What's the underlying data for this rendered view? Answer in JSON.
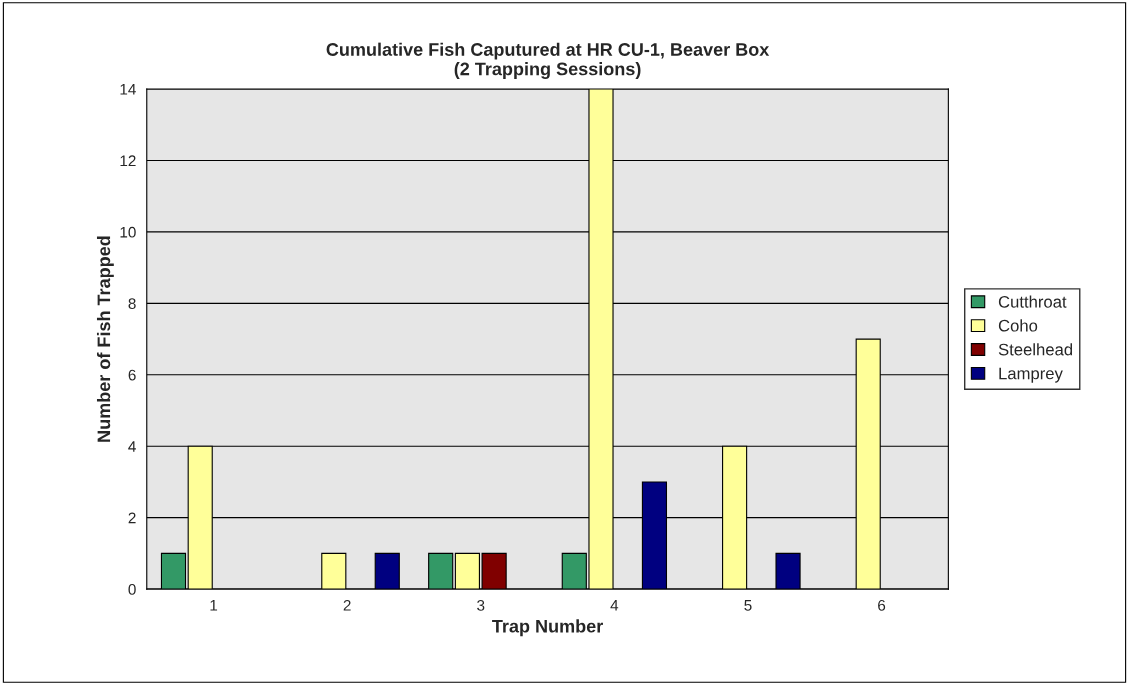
{
  "chart_data": {
    "type": "bar",
    "title": "Cumulative Fish Caputured at HR CU-1, Beaver Box\n(2 Trapping Sessions)",
    "xlabel": "Trap Number",
    "ylabel": "Number of Fish Trapped",
    "categories": [
      "1",
      "2",
      "3",
      "4",
      "5",
      "6"
    ],
    "series": [
      {
        "name": "Cutthroat",
        "color": "#339966",
        "values": [
          1,
          null,
          1,
          1,
          null,
          null
        ]
      },
      {
        "name": "Coho",
        "color": "#ffff99",
        "values": [
          4,
          1,
          1,
          14,
          4,
          7
        ]
      },
      {
        "name": "Steelhead",
        "color": "#800000",
        "values": [
          null,
          null,
          1,
          null,
          null,
          null
        ]
      },
      {
        "name": "Lamprey",
        "color": "#000080",
        "values": [
          null,
          1,
          null,
          3,
          1,
          null
        ]
      }
    ],
    "ylim": [
      0,
      14
    ],
    "yticks": [
      0,
      2,
      4,
      6,
      8,
      10,
      12,
      14
    ],
    "grid": "y",
    "legend": "right"
  }
}
